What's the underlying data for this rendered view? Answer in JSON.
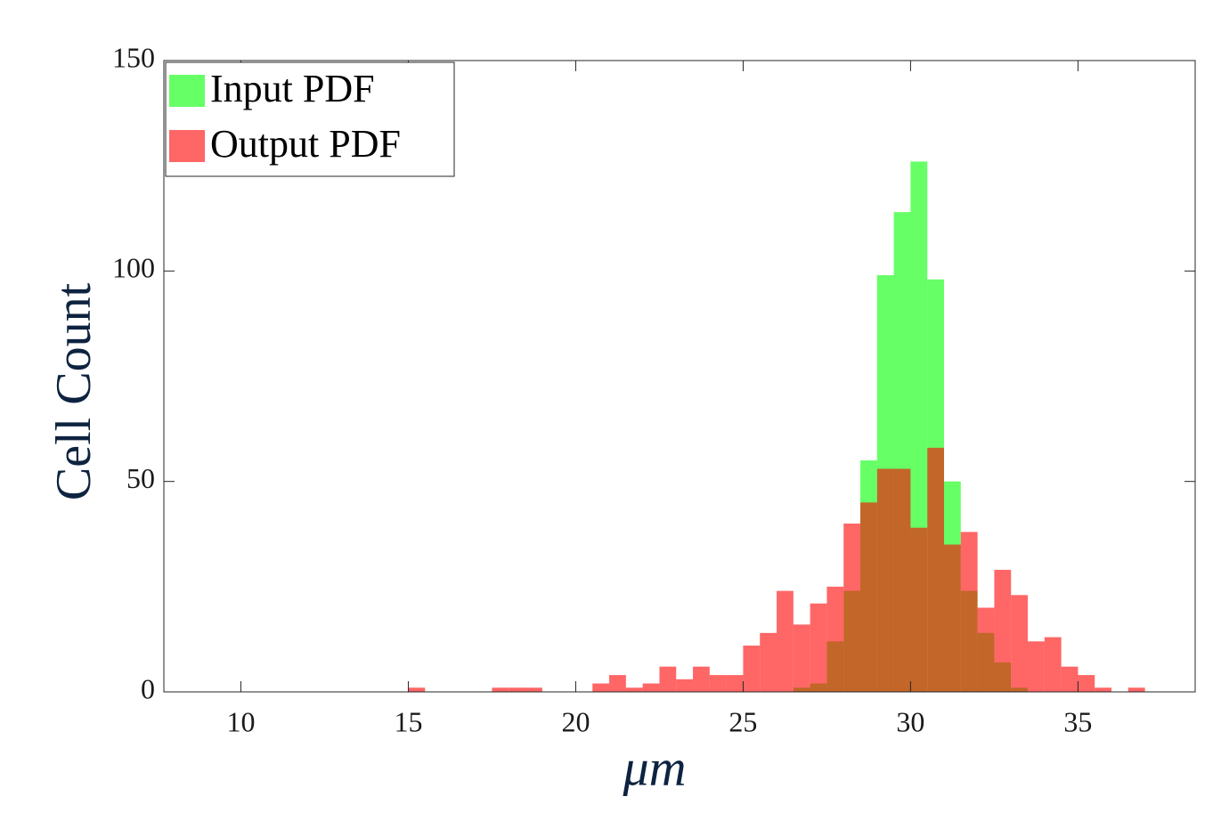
{
  "chart_data": {
    "type": "histogram",
    "xlabel": "μm",
    "ylabel": "Cell Count",
    "bins": [
      15,
      15.5,
      16,
      16.5,
      17,
      17.5,
      18,
      18.5,
      19,
      19.5,
      20,
      20.5,
      21,
      21.5,
      22,
      22.5,
      23,
      23.5,
      24,
      24.5,
      25,
      25.5,
      26,
      26.5,
      27,
      27.5,
      28,
      28.5,
      29,
      29.5,
      30,
      30.5,
      31,
      31.5,
      32,
      32.5,
      33,
      33.5,
      34,
      34.5,
      35,
      35.5,
      36,
      36.5,
      37
    ],
    "series": [
      {
        "name": "Input PDF",
        "color": "#00ff00",
        "values": [
          0,
          0,
          0,
          0,
          0,
          0,
          0,
          0,
          0,
          0,
          0,
          0,
          0,
          0,
          0,
          0,
          0,
          0,
          0,
          0,
          0,
          0,
          0,
          1,
          2,
          12,
          24,
          55,
          99,
          114,
          126,
          98,
          50,
          24,
          14,
          7,
          1,
          0,
          0,
          0,
          0,
          0,
          0,
          0
        ]
      },
      {
        "name": "Output PDF",
        "color": "#ff0000",
        "values": [
          1,
          0,
          0,
          0,
          0,
          1,
          1,
          1,
          0,
          0,
          0,
          2,
          4,
          1,
          2,
          6,
          3,
          6,
          4,
          4,
          11,
          14,
          24,
          16,
          21,
          25,
          40,
          45,
          53,
          53,
          39,
          58,
          35,
          38,
          20,
          29,
          23,
          12,
          13,
          6,
          4,
          1,
          0,
          1
        ]
      }
    ],
    "alpha": 0.6,
    "xlim": [
      7.7,
      38.5
    ],
    "xticks": [
      10,
      15,
      20,
      25,
      30,
      35
    ],
    "ylim": [
      0,
      150
    ],
    "yticks": [
      0,
      50,
      100,
      150
    ],
    "legend": "upper left"
  }
}
